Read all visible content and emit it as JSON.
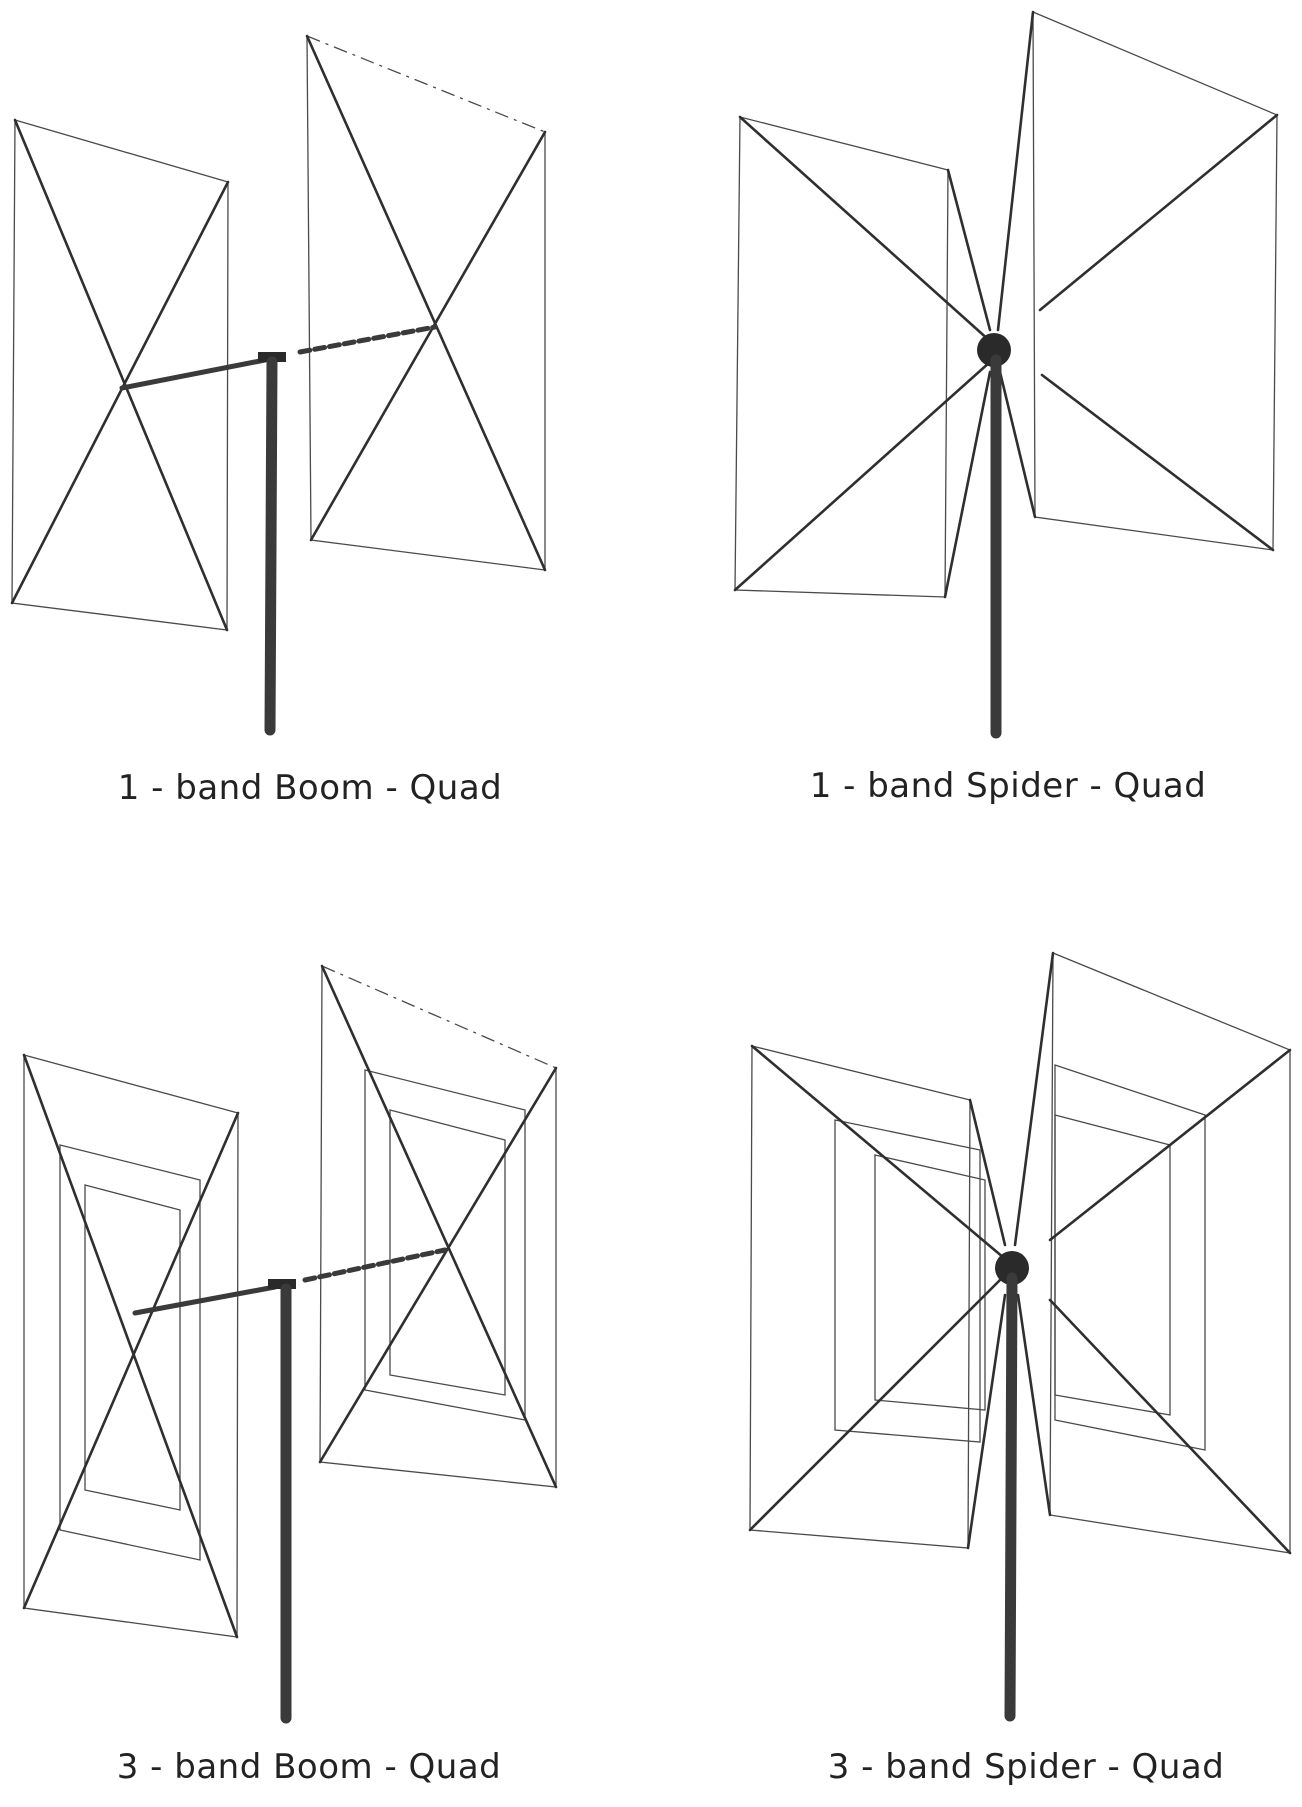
{
  "captions": {
    "one_band_boom": "1 - band Boom - Quad",
    "one_band_spider": "1 - band Spider - Quad",
    "three_band_boom": "3 - band Boom - Quad",
    "three_band_spider": "3 - band Spider - Quad"
  }
}
